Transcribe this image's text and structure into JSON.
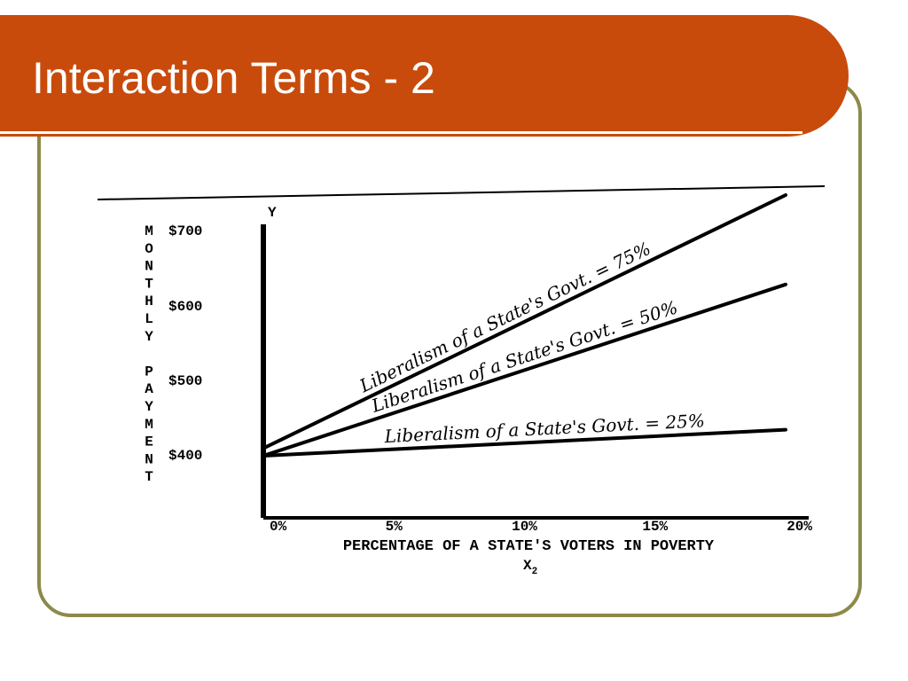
{
  "slide": {
    "title": "Interaction Terms - 2",
    "colors": {
      "banner": "#c84b0c",
      "frame": "#8c8a48",
      "ink": "#000000"
    }
  },
  "chart_data": {
    "type": "line",
    "title": "",
    "y_axis_name": "Y",
    "ylabel_letters": [
      "M",
      "O",
      "N",
      "T",
      "H",
      "L",
      "Y",
      "",
      "P",
      "A",
      "Y",
      "M",
      "E",
      "N",
      "T"
    ],
    "xlabel": "PERCENTAGE OF A STATE'S VOTERS IN POVERTY",
    "x_variable": "X",
    "x_variable_subscript": "2",
    "x": [
      0,
      20
    ],
    "x_tick_labels": [
      "0%",
      "5%",
      "10%",
      "15%",
      "20%"
    ],
    "y_tick_labels": [
      "$700",
      "$600",
      "$500",
      "$400"
    ],
    "xlim": [
      0,
      20
    ],
    "ylim": [
      300,
      700
    ],
    "series": [
      {
        "name": "Liberalism of a State's Govt. = 75%",
        "values": [
          410,
          750
        ]
      },
      {
        "name": "Liberalism of a State's Govt. = 50%",
        "values": [
          400,
          630
        ]
      },
      {
        "name": "Liberalism of a State's Govt. = 25%",
        "values": [
          400,
          435
        ]
      }
    ]
  }
}
